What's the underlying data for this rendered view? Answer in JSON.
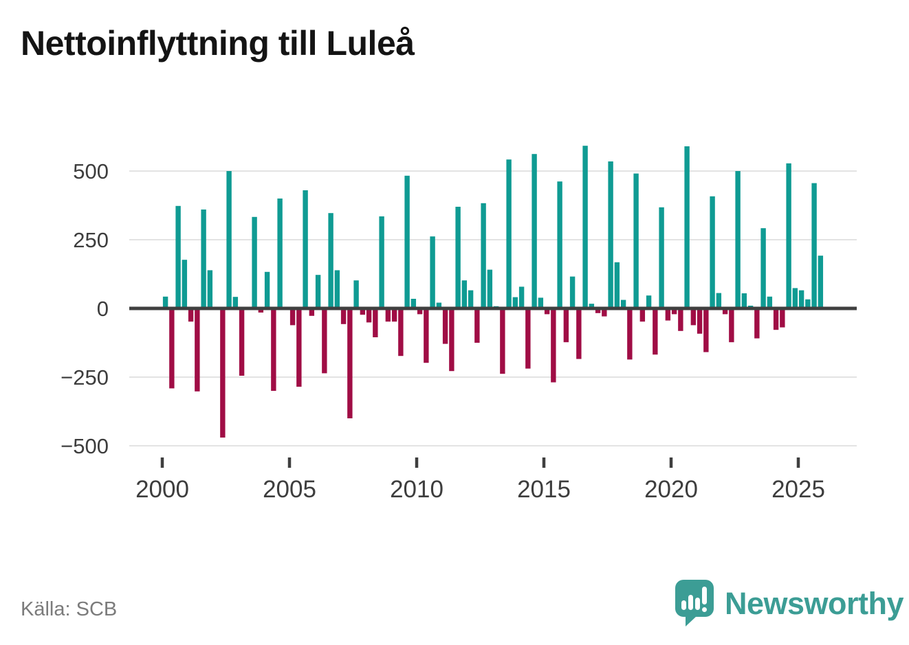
{
  "title": "Nettoinflyttning till Luleå",
  "source": {
    "label": "Källa: SCB"
  },
  "branding": {
    "name": "Newsworthy",
    "logo_icon": "speech-bubble-bar-chart-exclamation",
    "color": "#3c9d95"
  },
  "chart_data": {
    "type": "bar",
    "title": "Nettoinflyttning till Luleå",
    "xlabel": "",
    "ylabel": "",
    "frequency": "quarterly",
    "grid": true,
    "legend": false,
    "ylim": [
      -520,
      620
    ],
    "y_ticks": [
      500,
      250,
      0,
      -250,
      -500
    ],
    "y_tick_labels": [
      "500",
      "250",
      "0",
      "−250",
      "−500"
    ],
    "x_tick_labels": [
      "2000",
      "2005",
      "2010",
      "2015",
      "2020",
      "2025"
    ],
    "colors": {
      "positive": "#0f9b93",
      "negative": "#a00d45",
      "zero_line": "#3f3f3f",
      "grid_line": "#e3e3e3",
      "axis_text": "#3d3d3d"
    },
    "x": [
      "2000Q1",
      "2000Q2",
      "2000Q3",
      "2000Q4",
      "2001Q1",
      "2001Q2",
      "2001Q3",
      "2001Q4",
      "2002Q1",
      "2002Q2",
      "2002Q3",
      "2002Q4",
      "2003Q1",
      "2003Q2",
      "2003Q3",
      "2003Q4",
      "2004Q1",
      "2004Q2",
      "2004Q3",
      "2004Q4",
      "2005Q1",
      "2005Q2",
      "2005Q3",
      "2005Q4",
      "2006Q1",
      "2006Q2",
      "2006Q3",
      "2006Q4",
      "2007Q1",
      "2007Q2",
      "2007Q3",
      "2007Q4",
      "2008Q1",
      "2008Q2",
      "2008Q3",
      "2008Q4",
      "2009Q1",
      "2009Q2",
      "2009Q3",
      "2009Q4",
      "2010Q1",
      "2010Q2",
      "2010Q3",
      "2010Q4",
      "2011Q1",
      "2011Q2",
      "2011Q3",
      "2011Q4",
      "2012Q1",
      "2012Q2",
      "2012Q3",
      "2012Q4",
      "2013Q1",
      "2013Q2",
      "2013Q3",
      "2013Q4",
      "2014Q1",
      "2014Q2",
      "2014Q3",
      "2014Q4",
      "2015Q1",
      "2015Q2",
      "2015Q3",
      "2015Q4",
      "2016Q1",
      "2016Q2",
      "2016Q3",
      "2016Q4",
      "2017Q1",
      "2017Q2",
      "2017Q3",
      "2017Q4",
      "2018Q1",
      "2018Q2",
      "2018Q3",
      "2018Q4",
      "2019Q1",
      "2019Q2",
      "2019Q3",
      "2019Q4",
      "2020Q1",
      "2020Q2",
      "2020Q3",
      "2020Q4",
      "2021Q1",
      "2021Q2",
      "2021Q3",
      "2021Q4",
      "2022Q1",
      "2022Q2",
      "2022Q3",
      "2022Q4",
      "2023Q1",
      "2023Q2",
      "2023Q3",
      "2023Q4",
      "2024Q1",
      "2024Q2",
      "2024Q3",
      "2024Q4",
      "2025Q1",
      "2025Q2",
      "2025Q3",
      "2025Q4"
    ],
    "values": [
      43,
      -291,
      373,
      177,
      -48,
      -302,
      360,
      139,
      0,
      -470,
      500,
      42,
      -245,
      0,
      333,
      -15,
      133,
      -300,
      400,
      0,
      -61,
      -285,
      430,
      -27,
      122,
      -236,
      347,
      139,
      -57,
      -400,
      102,
      -23,
      -51,
      -105,
      335,
      -48,
      -48,
      -173,
      483,
      35,
      -21,
      -198,
      262,
      21,
      -129,
      -228,
      370,
      102,
      66,
      -125,
      383,
      141,
      8,
      -238,
      542,
      41,
      79,
      -219,
      562,
      39,
      -21,
      -269,
      462,
      -123,
      116,
      -184,
      592,
      17,
      -17,
      -29,
      535,
      168,
      31,
      -186,
      491,
      -48,
      47,
      -168,
      368,
      -44,
      -21,
      -82,
      590,
      -61,
      -92,
      -159,
      408,
      56,
      -21,
      -123,
      500,
      55,
      10,
      -109,
      292,
      43,
      -78,
      -69,
      528,
      74,
      66,
      33,
      456,
      192
    ]
  }
}
